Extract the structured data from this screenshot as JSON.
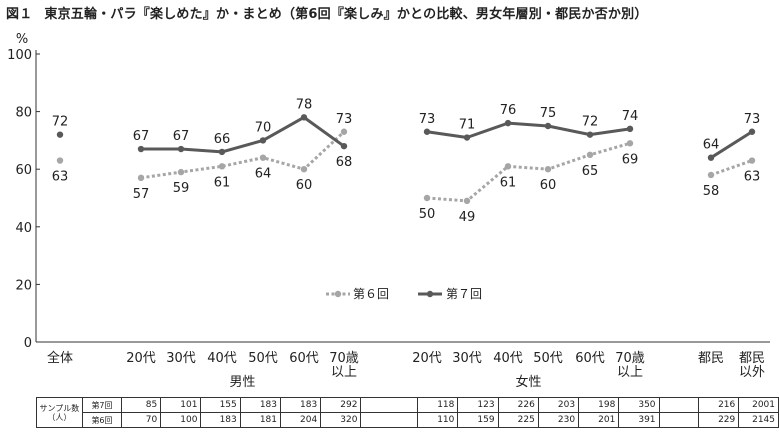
{
  "title": {
    "fig_label": "図１",
    "text": "東京五輪・パラ『楽しめた』か・まとめ（第6回『楽しみ』かとの比較、男女年層別・都民か否か別）"
  },
  "chart_data": {
    "type": "line",
    "y_unit": "%",
    "ylim": [
      0,
      100
    ],
    "yticks": [
      0,
      20,
      40,
      60,
      80,
      100
    ],
    "categories": [
      "全体",
      "20代",
      "30代",
      "40代",
      "50代",
      "60代",
      "70歳以上",
      "20代",
      "30代",
      "40代",
      "50代",
      "60代",
      "70歳以上",
      "都民",
      "都民以外"
    ],
    "x_labels": [
      [
        "全体"
      ],
      [
        "20代"
      ],
      [
        "30代"
      ],
      [
        "40代"
      ],
      [
        "50代"
      ],
      [
        "60代"
      ],
      [
        "70歳",
        "以上"
      ],
      [
        "20代"
      ],
      [
        "30代"
      ],
      [
        "40代"
      ],
      [
        "50代"
      ],
      [
        "60代"
      ],
      [
        "70歳",
        "以上"
      ],
      [
        "都民"
      ],
      [
        "都民",
        "以外"
      ]
    ],
    "groups": [
      {
        "label": "男性",
        "from": 1,
        "to": 6
      },
      {
        "label": "女性",
        "from": 7,
        "to": 12
      }
    ],
    "segments": [
      [
        0,
        0
      ],
      [
        1,
        6
      ],
      [
        7,
        12
      ],
      [
        13,
        14
      ]
    ],
    "series": [
      {
        "name": "第６回",
        "color": "#a6a6a6",
        "dashed": true,
        "values": [
          63,
          57,
          59,
          61,
          64,
          60,
          73,
          50,
          49,
          61,
          60,
          65,
          69,
          58,
          63
        ]
      },
      {
        "name": "第７回",
        "color": "#595959",
        "dashed": false,
        "values": [
          72,
          67,
          67,
          66,
          70,
          78,
          68,
          73,
          71,
          76,
          75,
          72,
          74,
          64,
          73
        ]
      }
    ],
    "grid": false,
    "legend_position": "bottom-center"
  },
  "sample_table": {
    "header": [
      "サンプル数",
      "（人）"
    ],
    "rows": [
      {
        "label": "第7回",
        "values": [
          "85",
          "101",
          "155",
          "183",
          "183",
          "292",
          "118",
          "123",
          "226",
          "203",
          "198",
          "350",
          "216",
          "2001"
        ]
      },
      {
        "label": "第6回",
        "values": [
          "70",
          "100",
          "183",
          "181",
          "204",
          "320",
          "110",
          "159",
          "225",
          "230",
          "201",
          "391",
          "229",
          "2145"
        ]
      }
    ]
  }
}
